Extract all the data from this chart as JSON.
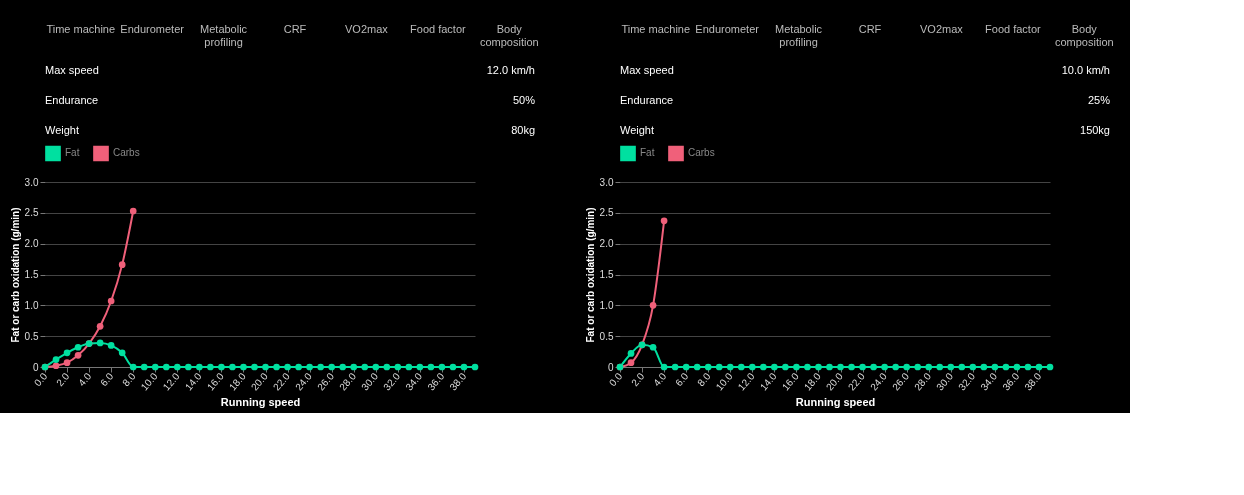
{
  "chart_data": [
    {
      "type": "other",
      "annotations": [
        "Time machine",
        "Endurometer",
        "Metabolic profiling",
        "CRF",
        "VO2max",
        "Food factor",
        "Body composition",
        "Max speed",
        "12.0 km/h",
        "Endurance",
        "50%",
        "Weight",
        "80kg"
      ]
    },
    {
      "type": "line",
      "xlabel": "Running speed",
      "ylabel": "Fat or carb oxidation (g/min)",
      "x": [
        0,
        1,
        2,
        3,
        4,
        5,
        6,
        7,
        8,
        9,
        10,
        11,
        12,
        13,
        14,
        15,
        16,
        17,
        18,
        19,
        20,
        21,
        22,
        23,
        24,
        25,
        26,
        27,
        28,
        29,
        30,
        31,
        32,
        33,
        34,
        35,
        36,
        37,
        38,
        39
      ],
      "xlim": [
        0,
        39
      ],
      "xticks": [
        {
          "value": 0,
          "label": "0.0"
        },
        {
          "value": 2,
          "label": "2.0"
        },
        {
          "value": 4,
          "label": "4.0"
        },
        {
          "value": 6,
          "label": "6.0"
        },
        {
          "value": 8,
          "label": "8.0"
        },
        {
          "value": 10,
          "label": "10.0"
        },
        {
          "value": 12,
          "label": "12.0"
        },
        {
          "value": 14,
          "label": "14.0"
        },
        {
          "value": 16,
          "label": "16.0"
        },
        {
          "value": 18,
          "label": "18.0"
        },
        {
          "value": 20,
          "label": "20.0"
        },
        {
          "value": 22,
          "label": "22.0"
        },
        {
          "value": 24,
          "label": "24.0"
        },
        {
          "value": 26,
          "label": "26.0"
        },
        {
          "value": 28,
          "label": "28.0"
        },
        {
          "value": 30,
          "label": "30.0"
        },
        {
          "value": 32,
          "label": "32.0"
        },
        {
          "value": 34,
          "label": "34.0"
        },
        {
          "value": 36,
          "label": "36.0"
        },
        {
          "value": 38,
          "label": "38.0"
        }
      ],
      "ylim": [
        0,
        3
      ],
      "yticks": [
        0,
        0.5,
        {
          "value": 1,
          "label": "1.0"
        },
        1.5,
        {
          "value": 2,
          "label": "2.0"
        },
        2.5,
        {
          "value": 3,
          "label": "3.0"
        }
      ],
      "grid": "y",
      "legend": "top",
      "marker": "circle",
      "line_style": "solid",
      "series": [
        {
          "name": "Fat",
          "color": "#00e0a0",
          "values": [
            0,
            0.12,
            0.23,
            0.32,
            0.38,
            0.39,
            0.35,
            0.23,
            0,
            0,
            0,
            0,
            0,
            0,
            0,
            0,
            0,
            0,
            0,
            0,
            0,
            0,
            0,
            0,
            0,
            0,
            0,
            0,
            0,
            0,
            0,
            0,
            0,
            0,
            0,
            0,
            0,
            0,
            0,
            0
          ]
        },
        {
          "name": "Carbs",
          "color": "#f0607a",
          "values": [
            0,
            0.02,
            0.07,
            0.19,
            0.38,
            0.66,
            1.07,
            1.66,
            2.53,
            null,
            null,
            null,
            null,
            null,
            null,
            null,
            null,
            null,
            null,
            null,
            null,
            null,
            null,
            null,
            null,
            null,
            null,
            null,
            null,
            null,
            null,
            null,
            null,
            null,
            null,
            null,
            null,
            null,
            null,
            null
          ]
        }
      ]
    },
    {
      "type": "other",
      "annotations": [
        "Time machine",
        "Endurometer",
        "Metabolic profiling",
        "CRF",
        "VO2max",
        "Food factor",
        "Body composition",
        "Max speed",
        "10.0 km/h",
        "Endurance",
        "25%",
        "Weight",
        "150kg"
      ]
    },
    {
      "type": "line",
      "xlabel": "Running speed",
      "ylabel": "Fat or carb oxidation (g/min)",
      "x": [
        0,
        1,
        2,
        3,
        4,
        5,
        6,
        7,
        8,
        9,
        10,
        11,
        12,
        13,
        14,
        15,
        16,
        17,
        18,
        19,
        20,
        21,
        22,
        23,
        24,
        25,
        26,
        27,
        28,
        29,
        30,
        31,
        32,
        33,
        34,
        35,
        36,
        37,
        38,
        39
      ],
      "xlim": [
        0,
        39
      ],
      "xticks": [
        {
          "value": 0,
          "label": "0.0"
        },
        {
          "value": 2,
          "label": "2.0"
        },
        {
          "value": 4,
          "label": "4.0"
        },
        {
          "value": 6,
          "label": "6.0"
        },
        {
          "value": 8,
          "label": "8.0"
        },
        {
          "value": 10,
          "label": "10.0"
        },
        {
          "value": 12,
          "label": "12.0"
        },
        {
          "value": 14,
          "label": "14.0"
        },
        {
          "value": 16,
          "label": "16.0"
        },
        {
          "value": 18,
          "label": "18.0"
        },
        {
          "value": 20,
          "label": "20.0"
        },
        {
          "value": 22,
          "label": "22.0"
        },
        {
          "value": 24,
          "label": "24.0"
        },
        {
          "value": 26,
          "label": "26.0"
        },
        {
          "value": 28,
          "label": "28.0"
        },
        {
          "value": 30,
          "label": "30.0"
        },
        {
          "value": 32,
          "label": "32.0"
        },
        {
          "value": 34,
          "label": "34.0"
        },
        {
          "value": 36,
          "label": "36.0"
        },
        {
          "value": 38,
          "label": "38.0"
        }
      ],
      "ylim": [
        0,
        3
      ],
      "yticks": [
        0,
        0.5,
        {
          "value": 1,
          "label": "1.0"
        },
        1.5,
        {
          "value": 2,
          "label": "2.0"
        },
        2.5,
        {
          "value": 3,
          "label": "3.0"
        }
      ],
      "grid": "y",
      "legend": "top",
      "marker": "circle",
      "line_style": "solid",
      "series": [
        {
          "name": "Fat",
          "color": "#00e0a0",
          "values": [
            0,
            0.22,
            0.36,
            0.32,
            0,
            0,
            0,
            0,
            0,
            0,
            0,
            0,
            0,
            0,
            0,
            0,
            0,
            0,
            0,
            0,
            0,
            0,
            0,
            0,
            0,
            0,
            0,
            0,
            0,
            0,
            0,
            0,
            0,
            0,
            0,
            0,
            0,
            0,
            0,
            0
          ]
        },
        {
          "name": "Carbs",
          "color": "#f0607a",
          "values": [
            0,
            0.07,
            0.36,
            1.0,
            2.37,
            null,
            null,
            null,
            null,
            null,
            null,
            null,
            null,
            null,
            null,
            null,
            null,
            null,
            null,
            null,
            null,
            null,
            null,
            null,
            null,
            null,
            null,
            null,
            null,
            null,
            null,
            null,
            null,
            null,
            null,
            null,
            null,
            null,
            null,
            null
          ]
        }
      ]
    }
  ]
}
